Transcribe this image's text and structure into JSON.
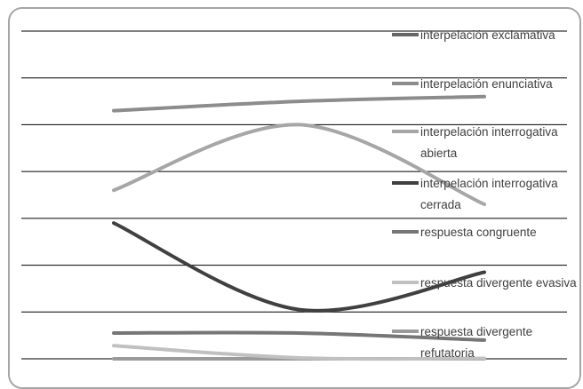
{
  "chart_data": {
    "type": "line",
    "title": "",
    "xlabel": "",
    "ylabel": "",
    "x": [
      1,
      2,
      3
    ],
    "ylim": [
      0,
      7
    ],
    "grid": true,
    "legend_position": "right",
    "series": [
      {
        "name": "interpelación exclamativa",
        "color": "#666666",
        "values": [
          null,
          null,
          null
        ]
      },
      {
        "name": "interpelación enunciativa",
        "color": "#8c8c8c",
        "values": [
          5.3,
          5.5,
          5.6
        ]
      },
      {
        "name": "interpelación interrogativa abierta",
        "color": "#a6a6a6",
        "values": [
          3.6,
          5.0,
          3.3
        ]
      },
      {
        "name": "interpelación interrogativa cerrada",
        "color": "#404040",
        "values": [
          2.9,
          1.05,
          1.85
        ]
      },
      {
        "name": "respuesta congruente",
        "color": "#767676",
        "values": [
          0.55,
          0.55,
          0.4
        ]
      },
      {
        "name": "respuesta divergente evasiva",
        "color": "#c0c0c0",
        "values": [
          0.28,
          0.02,
          0.01
        ]
      },
      {
        "name": "respuesta divergente refutatoria",
        "color": "#9a9a9a",
        "values": [
          0.0,
          0.0,
          0.0
        ]
      }
    ]
  },
  "legend": {
    "items": [
      {
        "lines": [
          "interpelación exclamativa"
        ]
      },
      {
        "lines": [
          "interpelación enunciativa"
        ]
      },
      {
        "lines": [
          "interpelación interrogativa",
          "abierta"
        ]
      },
      {
        "lines": [
          "interpelación interrogativa",
          "cerrada"
        ]
      },
      {
        "lines": [
          "respuesta congruente"
        ]
      },
      {
        "lines": [
          "respuesta divergente evasiva"
        ]
      },
      {
        "lines": [
          "respuesta divergente",
          "refutatoria"
        ]
      }
    ]
  }
}
